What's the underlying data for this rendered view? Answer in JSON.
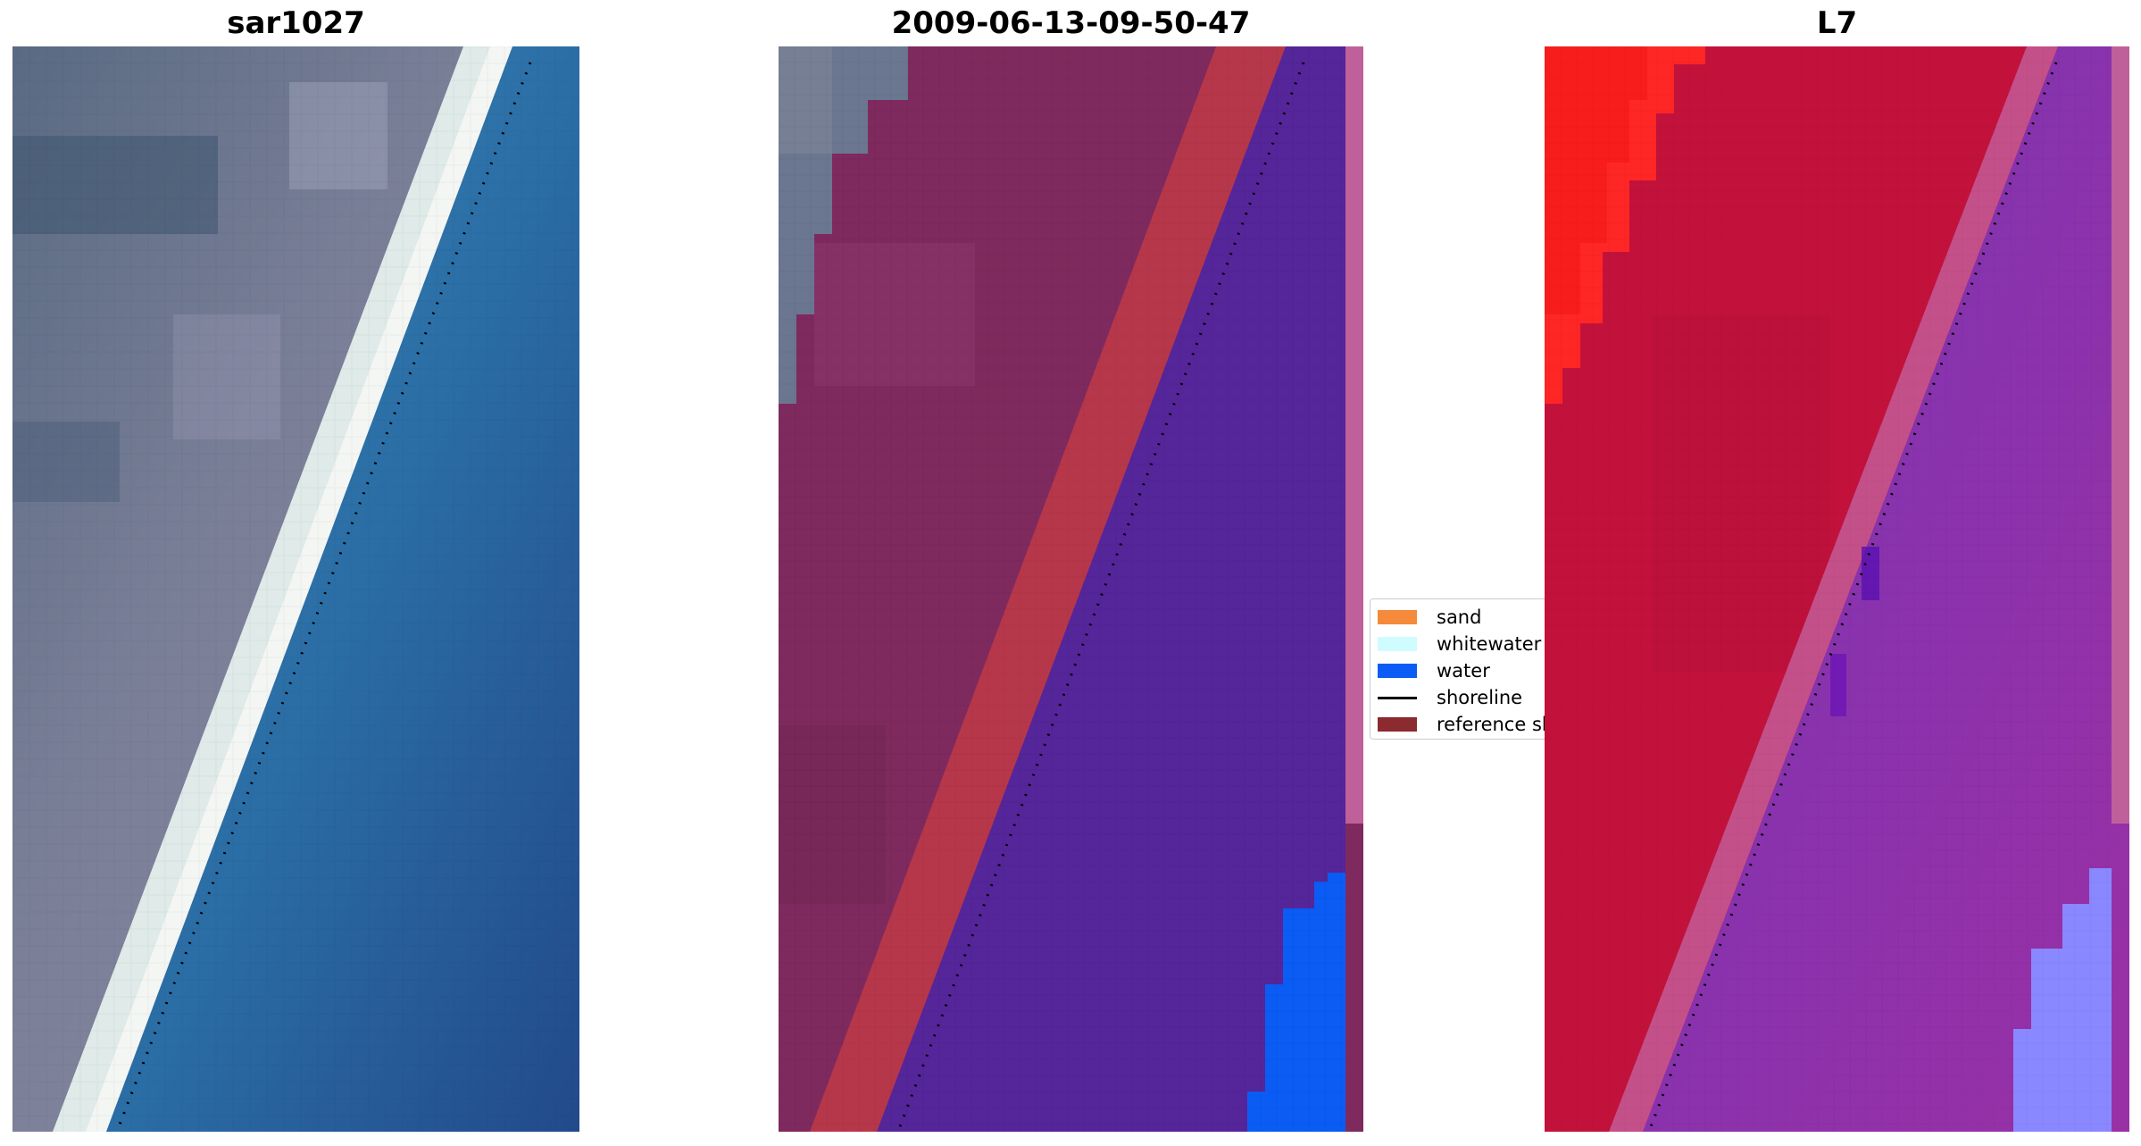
{
  "panels": [
    {
      "title": "sar1027"
    },
    {
      "title": "2009-06-13-09-50-47"
    },
    {
      "title": "L7"
    }
  ],
  "legend": {
    "items": [
      {
        "label": "sand",
        "color": "#f58a3a",
        "kind": "patch"
      },
      {
        "label": "whitewater",
        "color": "#cffcff",
        "kind": "patch"
      },
      {
        "label": "water",
        "color": "#0a5cf5",
        "kind": "patch"
      },
      {
        "label": "shoreline",
        "color": "#000000",
        "kind": "line"
      },
      {
        "label": "reference shoreline",
        "color": "#8b2a2f",
        "kind": "patch"
      }
    ]
  },
  "colors": {
    "sea_blue": "#2e6fa5",
    "land_gray": "#6f7690",
    "beach_white": "#e6f0ee",
    "class_land": "#7e2a5e",
    "class_sand_band": "#b7374a",
    "class_water": "#55259a",
    "class_water_bright": "#0a5cf5",
    "index_land": "#c2123c",
    "index_water": "#9030aa",
    "index_hot": "#ff2020",
    "index_cool": "#8a88ff"
  }
}
